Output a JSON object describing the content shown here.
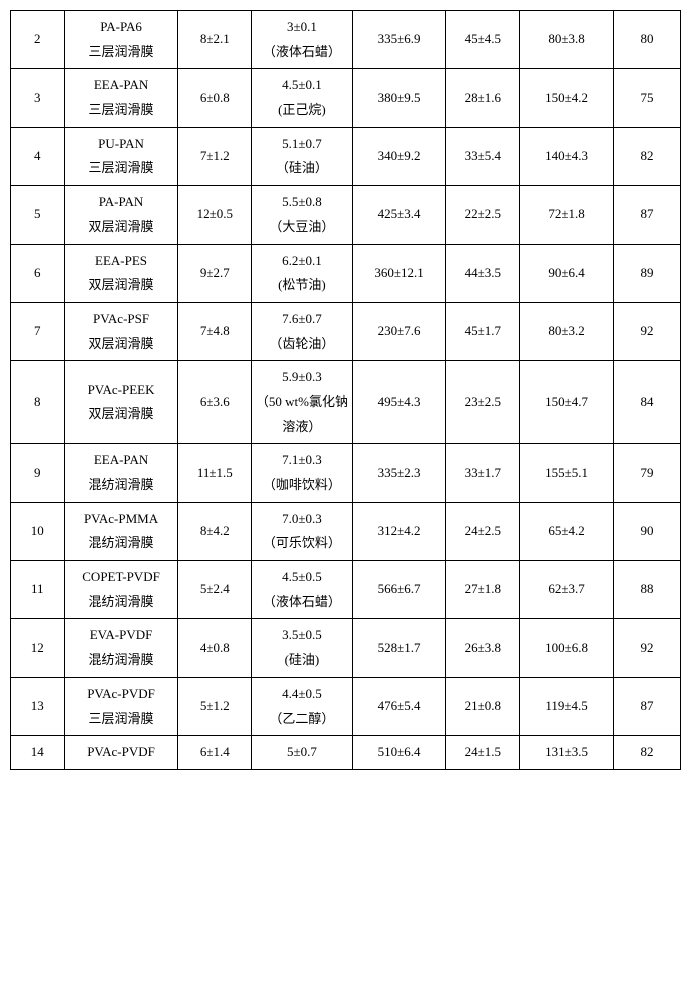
{
  "table": {
    "col_widths_pct": [
      8,
      17,
      11,
      15,
      14,
      11,
      14,
      10
    ],
    "font_size": 13,
    "border_color": "#000000",
    "background_color": "#ffffff",
    "text_color": "#000000",
    "rows": [
      {
        "id": "2",
        "name_l1": "PA-PA6",
        "name_l2": "三层润滑膜",
        "c2": "8±2.1",
        "c3_l1": "3±0.1",
        "c3_l2": "（液体石蜡）",
        "c4": "335±6.9",
        "c5": "45±4.5",
        "c6": "80±3.8",
        "c7": "80"
      },
      {
        "id": "3",
        "name_l1": "EEA-PAN",
        "name_l2": "三层润滑膜",
        "c2": "6±0.8",
        "c3_l1": "4.5±0.1",
        "c3_l2": "(正己烷)",
        "c4": "380±9.5",
        "c5": "28±1.6",
        "c6": "150±4.2",
        "c7": "75"
      },
      {
        "id": "4",
        "name_l1": "PU-PAN",
        "name_l2": "三层润滑膜",
        "c2": "7±1.2",
        "c3_l1": "5.1±0.7",
        "c3_l2": "（硅油）",
        "c4": "340±9.2",
        "c5": "33±5.4",
        "c6": "140±4.3",
        "c7": "82"
      },
      {
        "id": "5",
        "name_l1": "PA-PAN",
        "name_l2": "双层润滑膜",
        "c2": "12±0.5",
        "c3_l1": "5.5±0.8",
        "c3_l2": "（大豆油）",
        "c4": "425±3.4",
        "c5": "22±2.5",
        "c6": "72±1.8",
        "c7": "87"
      },
      {
        "id": "6",
        "name_l1": "EEA-PES",
        "name_l2": "双层润滑膜",
        "c2": "9±2.7",
        "c3_l1": "6.2±0.1",
        "c3_l2": "(松节油)",
        "c4": "360±12.1",
        "c5": "44±3.5",
        "c6": "90±6.4",
        "c7": "89"
      },
      {
        "id": "7",
        "name_l1": "PVAc-PSF",
        "name_l2": "双层润滑膜",
        "c2": "7±4.8",
        "c3_l1": "7.6±0.7",
        "c3_l2": "（齿轮油）",
        "c4": "230±7.6",
        "c5": "45±1.7",
        "c6": "80±3.2",
        "c7": "92"
      },
      {
        "id": "8",
        "name_l1": "PVAc-PEEK",
        "name_l2": "双层润滑膜",
        "c2": "6±3.6",
        "c3_l1": "5.9±0.3",
        "c3_l2": "（50 wt%氯化钠溶液）",
        "c4": "495±4.3",
        "c5": "23±2.5",
        "c6": "150±4.7",
        "c7": "84"
      },
      {
        "id": "9",
        "name_l1": "EEA-PAN",
        "name_l2": "混纺润滑膜",
        "c2": "11±1.5",
        "c3_l1": "7.1±0.3",
        "c3_l2": "（咖啡饮料）",
        "c4": "335±2.3",
        "c5": "33±1.7",
        "c6": "155±5.1",
        "c7": "79"
      },
      {
        "id": "10",
        "name_l1": "PVAc-PMMA",
        "name_l2": "混纺润滑膜",
        "c2": "8±4.2",
        "c3_l1": "7.0±0.3",
        "c3_l2": "（可乐饮料）",
        "c4": "312±4.2",
        "c5": "24±2.5",
        "c6": "65±4.2",
        "c7": "90"
      },
      {
        "id": "11",
        "name_l1": "COPET-PVDF",
        "name_l2": "混纺润滑膜",
        "c2": "5±2.4",
        "c3_l1": "4.5±0.5",
        "c3_l2": "（液体石蜡）",
        "c4": "566±6.7",
        "c5": "27±1.8",
        "c6": "62±3.7",
        "c7": "88"
      },
      {
        "id": "12",
        "name_l1": "EVA-PVDF",
        "name_l2": "混纺润滑膜",
        "c2": "4±0.8",
        "c3_l1": "3.5±0.5",
        "c3_l2": "(硅油)",
        "c4": "528±1.7",
        "c5": "26±3.8",
        "c6": "100±6.8",
        "c7": "92"
      },
      {
        "id": "13",
        "name_l1": "PVAc-PVDF",
        "name_l2": "三层润滑膜",
        "c2": "5±1.2",
        "c3_l1": "4.4±0.5",
        "c3_l2": "（乙二醇）",
        "c4": "476±5.4",
        "c5": "21±0.8",
        "c6": "119±4.5",
        "c7": "87"
      },
      {
        "id": "14",
        "name_l1": "PVAc-PVDF",
        "name_l2": "",
        "c2": "6±1.4",
        "c3_l1": "5±0.7",
        "c3_l2": "",
        "c4": "510±6.4",
        "c5": "24±1.5",
        "c6": "131±3.5",
        "c7": "82"
      }
    ]
  }
}
